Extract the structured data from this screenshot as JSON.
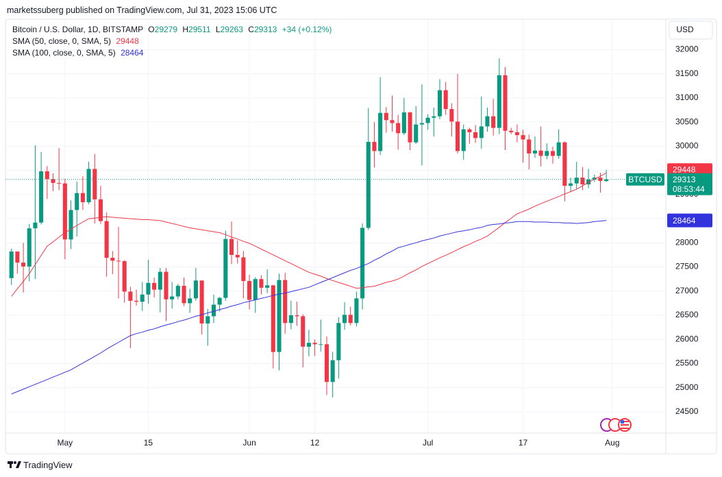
{
  "chart_data": {
    "type": "candlestick",
    "publisher": "marketssuberg published on TradingView.com, Jul 31, 2023 15:06 UTC",
    "title": "Bitcoin / U.S. Dollar, 1D, BITSTAMP",
    "ohlc_labels": [
      "O",
      "H",
      "L",
      "C"
    ],
    "change": "+34 (+0.12%)",
    "symbol": "BTCUSD",
    "countdown": "08:53:44",
    "currency": "USD",
    "brand": "TradingView",
    "up_color": "#089981",
    "down_color": "#f23645",
    "x": [
      "2023-04-22",
      "2023-04-23",
      "2023-04-24",
      "2023-04-25",
      "2023-04-26",
      "2023-04-27",
      "2023-04-28",
      "2023-04-29",
      "2023-04-30",
      "2023-05-01",
      "2023-05-02",
      "2023-05-03",
      "2023-05-04",
      "2023-05-05",
      "2023-05-06",
      "2023-05-07",
      "2023-05-08",
      "2023-05-09",
      "2023-05-10",
      "2023-05-11",
      "2023-05-12",
      "2023-05-13",
      "2023-05-14",
      "2023-05-15",
      "2023-05-16",
      "2023-05-17",
      "2023-05-18",
      "2023-05-19",
      "2023-05-20",
      "2023-05-21",
      "2023-05-22",
      "2023-05-23",
      "2023-05-24",
      "2023-05-25",
      "2023-05-26",
      "2023-05-27",
      "2023-05-28",
      "2023-05-29",
      "2023-05-30",
      "2023-05-31",
      "2023-06-01",
      "2023-06-02",
      "2023-06-03",
      "2023-06-04",
      "2023-06-05",
      "2023-06-06",
      "2023-06-07",
      "2023-06-08",
      "2023-06-09",
      "2023-06-10",
      "2023-06-11",
      "2023-06-12",
      "2023-06-13",
      "2023-06-14",
      "2023-06-15",
      "2023-06-16",
      "2023-06-17",
      "2023-06-18",
      "2023-06-19",
      "2023-06-20",
      "2023-06-21",
      "2023-06-22",
      "2023-06-23",
      "2023-06-24",
      "2023-06-25",
      "2023-06-26",
      "2023-06-27",
      "2023-06-28",
      "2023-06-29",
      "2023-06-30",
      "2023-07-01",
      "2023-07-02",
      "2023-07-03",
      "2023-07-04",
      "2023-07-05",
      "2023-07-06",
      "2023-07-07",
      "2023-07-08",
      "2023-07-09",
      "2023-07-10",
      "2023-07-11",
      "2023-07-12",
      "2023-07-13",
      "2023-07-14",
      "2023-07-15",
      "2023-07-16",
      "2023-07-17",
      "2023-07-18",
      "2023-07-19",
      "2023-07-20",
      "2023-07-21",
      "2023-07-22",
      "2023-07-23",
      "2023-07-24",
      "2023-07-25",
      "2023-07-26",
      "2023-07-27",
      "2023-07-28",
      "2023-07-29",
      "2023-07-30",
      "2023-07-31"
    ],
    "open": [
      27270,
      27820,
      27590,
      27510,
      28300,
      28420,
      29480,
      29320,
      29240,
      29230,
      28070,
      28680,
      29030,
      28840,
      29530,
      28900,
      28450,
      27690,
      27630,
      27620,
      26990,
      26800,
      26780,
      26930,
      27170,
      27030,
      27400,
      26830,
      26890,
      27110,
      26750,
      26850,
      27220,
      26330,
      26480,
      26720,
      26860,
      28080,
      27750,
      27700,
      27210,
      26820,
      27250,
      27070,
      27120,
      25740,
      27230,
      26340,
      26500,
      26480,
      25850,
      25930,
      25900,
      25900,
      25120,
      25570,
      26340,
      26510,
      26340,
      26850,
      28310,
      30090,
      29900,
      30690,
      30540,
      30480,
      30270,
      30700,
      30080,
      30450,
      30480,
      30590,
      30620,
      31160,
      30770,
      30510,
      29900,
      30350,
      30290,
      30170,
      30410,
      30620,
      30380,
      31470,
      30320,
      30290,
      30230,
      30140,
      29850,
      29910,
      29800,
      29900,
      29800,
      30080,
      29180,
      29230,
      29350,
      29210,
      29310,
      29350,
      29279
    ],
    "high": [
      27880,
      27820,
      28000,
      28390,
      30020,
      29880,
      29590,
      29440,
      29960,
      29330,
      28880,
      29270,
      29380,
      29680,
      29840,
      29180,
      28630,
      27830,
      28330,
      27640,
      27090,
      27030,
      27190,
      27650,
      27280,
      27480,
      27480,
      27190,
      27150,
      27280,
      27050,
      27480,
      27220,
      26630,
      26930,
      26880,
      28250,
      28440,
      28050,
      27830,
      27340,
      27290,
      27330,
      27450,
      27130,
      27360,
      27380,
      26800,
      26780,
      26520,
      26200,
      26000,
      26410,
      26060,
      25740,
      26460,
      26770,
      26680,
      26990,
      28400,
      30790,
      30500,
      31430,
      30810,
      31050,
      30650,
      31000,
      30710,
      30830,
      31280,
      30660,
      30800,
      31390,
      31330,
      30890,
      31500,
      30450,
      30380,
      30440,
      31030,
      30800,
      30980,
      31820,
      31640,
      30380,
      30450,
      30340,
      30240,
      30200,
      30410,
      30060,
      29990,
      30350,
      30100,
      29350,
      29680,
      29570,
      29530,
      29410,
      29450,
      29511
    ],
    "low": [
      27130,
      27360,
      26970,
      27200,
      27250,
      28380,
      28910,
      29070,
      29090,
      27660,
      27870,
      28130,
      28680,
      28800,
      28400,
      28390,
      27300,
      27350,
      26850,
      26760,
      25820,
      26700,
      26590,
      26740,
      26870,
      26560,
      26380,
      26640,
      26830,
      26690,
      26550,
      26800,
      26100,
      25870,
      26340,
      26580,
      26800,
      27560,
      27570,
      26850,
      26620,
      26550,
      26930,
      26960,
      25400,
      25360,
      26120,
      26210,
      26280,
      25420,
      25650,
      25660,
      25750,
      24850,
      24800,
      25190,
      26200,
      26290,
      26270,
      26620,
      28270,
      29560,
      29820,
      30280,
      30300,
      29930,
      30230,
      29920,
      30050,
      29600,
      30340,
      30200,
      30560,
      30650,
      30200,
      29850,
      29720,
      30050,
      30070,
      29950,
      30300,
      30220,
      30250,
      29920,
      30250,
      30080,
      29660,
      29520,
      29760,
      29580,
      29730,
      29640,
      29740,
      28860,
      29050,
      29110,
      29090,
      29130,
      29260,
      29040,
      29263
    ],
    "close": [
      27820,
      27590,
      27510,
      28300,
      28420,
      29480,
      29320,
      29240,
      29230,
      28070,
      28680,
      29030,
      28840,
      29530,
      28900,
      28450,
      27690,
      27630,
      27620,
      26990,
      26800,
      26780,
      26930,
      27170,
      27030,
      27400,
      26830,
      26890,
      27110,
      26750,
      26850,
      27220,
      26330,
      26480,
      26720,
      26860,
      28080,
      27750,
      27700,
      27210,
      26820,
      27250,
      27070,
      27120,
      25740,
      27230,
      26340,
      26500,
      26480,
      25850,
      25930,
      25900,
      25900,
      25120,
      25570,
      26340,
      26510,
      26340,
      26850,
      28310,
      30090,
      29900,
      30690,
      30540,
      30480,
      30270,
      30700,
      30080,
      30450,
      30480,
      30590,
      30620,
      31160,
      30770,
      30510,
      29900,
      30350,
      30290,
      30170,
      30410,
      30620,
      30380,
      31470,
      30320,
      30290,
      30230,
      30140,
      29850,
      29910,
      29800,
      29900,
      29800,
      30080,
      29180,
      29230,
      29350,
      29210,
      29310,
      29350,
      29280,
      29313
    ],
    "series": [
      {
        "name": "SMA (50, close, 0, SMA, 5)",
        "color": "#f23645",
        "values": [
          26890,
          27050,
          27200,
          27360,
          27550,
          27740,
          27930,
          28020,
          28120,
          28210,
          28280,
          28360,
          28430,
          28500,
          28510,
          28530,
          28540,
          28530,
          28520,
          28510,
          28500,
          28490,
          28480,
          28480,
          28470,
          28460,
          28430,
          28400,
          28370,
          28340,
          28310,
          28290,
          28270,
          28250,
          28230,
          28210,
          28170,
          28120,
          28080,
          28030,
          27990,
          27930,
          27870,
          27810,
          27750,
          27690,
          27630,
          27570,
          27510,
          27450,
          27390,
          27350,
          27310,
          27260,
          27220,
          27180,
          27140,
          27100,
          27060,
          27070,
          27090,
          27100,
          27140,
          27180,
          27210,
          27250,
          27310,
          27380,
          27440,
          27510,
          27570,
          27630,
          27690,
          27740,
          27800,
          27860,
          27920,
          27970,
          28030,
          28080,
          28140,
          28230,
          28320,
          28420,
          28510,
          28600,
          28650,
          28700,
          28760,
          28810,
          28860,
          28910,
          28960,
          29010,
          29060,
          29110,
          29180,
          29250,
          29320,
          29380,
          29448
        ]
      },
      {
        "name": "SMA (100, close, 0, SMA, 5)",
        "color": "#3333dd",
        "values": [
          24870,
          24920,
          24970,
          25020,
          25070,
          25120,
          25170,
          25220,
          25270,
          25320,
          25370,
          25440,
          25510,
          25580,
          25650,
          25720,
          25800,
          25870,
          25940,
          26010,
          26080,
          26120,
          26150,
          26190,
          26220,
          26260,
          26300,
          26330,
          26370,
          26400,
          26440,
          26480,
          26510,
          26550,
          26580,
          26620,
          26650,
          26690,
          26720,
          26760,
          26790,
          26820,
          26850,
          26880,
          26910,
          26940,
          26960,
          26990,
          27020,
          27050,
          27080,
          27130,
          27180,
          27230,
          27280,
          27330,
          27380,
          27430,
          27470,
          27520,
          27570,
          27640,
          27700,
          27770,
          27830,
          27900,
          27930,
          27970,
          28000,
          28040,
          28070,
          28100,
          28140,
          28170,
          28200,
          28230,
          28250,
          28270,
          28300,
          28320,
          28360,
          28380,
          28390,
          28410,
          28420,
          28440,
          28440,
          28440,
          28430,
          28430,
          28430,
          28420,
          28420,
          28410,
          28410,
          28400,
          28410,
          28420,
          28440,
          28450,
          28464
        ]
      }
    ],
    "ylim": [
      24060,
      32630
    ],
    "yticks": [
      24500,
      25000,
      25500,
      26000,
      26500,
      27000,
      27500,
      28000,
      28500,
      29000,
      29500,
      30000,
      30500,
      31000,
      31500,
      32000
    ],
    "xlim": [
      "2023-04-21",
      "2023-08-10"
    ],
    "xticks": [
      {
        "value": "2023-05-01",
        "label": "May"
      },
      {
        "value": "2023-05-15",
        "label": "15"
      },
      {
        "value": "2023-06-01",
        "label": "Jun"
      },
      {
        "value": "2023-06-12",
        "label": "12"
      },
      {
        "value": "2023-07-01",
        "label": "Jul"
      },
      {
        "value": "2023-07-17",
        "label": "17"
      },
      {
        "value": "2023-08-01",
        "label": "Aug"
      }
    ],
    "grid": true
  }
}
